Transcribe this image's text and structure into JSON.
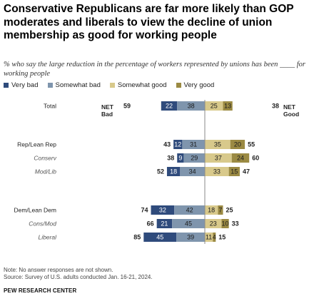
{
  "title": "Conservative Republicans are far more likely than GOP moderates and liberals to view the decline of union membership as good for working people",
  "subtitle_part1": "% who say the large reduction in the percentage of workers represented by unions has been",
  "subtitle_part2": "for working people",
  "note": "Note: No answer responses are not shown.",
  "source": "Source: Survey of U.S. adults conducted Jan. 16-21, 2024.",
  "org": "PEW RESEARCH CENTER",
  "chart_data": {
    "type": "bar",
    "stacked": "diverging",
    "series": [
      {
        "name": "Very bad",
        "color": "#2f4b7c"
      },
      {
        "name": "Somewhat bad",
        "color": "#7f95ad"
      },
      {
        "name": "Somewhat good",
        "color": "#d8c98b"
      },
      {
        "name": "Very good",
        "color": "#9b8a43"
      }
    ],
    "net_headers": {
      "bad": [
        "NET",
        "Bad"
      ],
      "good": [
        "NET",
        "Good"
      ]
    },
    "rows": [
      {
        "label": "Total",
        "style": "normal",
        "net_bad": "59",
        "very_bad": 22,
        "somewhat_bad": 38,
        "somewhat_good": 25,
        "very_good": 13,
        "net_good": "38"
      },
      {
        "label": "Rep/Lean Rep",
        "style": "normal",
        "net_bad": "43",
        "very_bad": 12,
        "somewhat_bad": 31,
        "somewhat_good": 35,
        "very_good": 20,
        "net_good": "55"
      },
      {
        "label": "Conserv",
        "style": "italic",
        "net_bad": "38",
        "very_bad": 9,
        "somewhat_bad": 29,
        "somewhat_good": 37,
        "very_good": 24,
        "net_good": "60"
      },
      {
        "label": "Mod/Lib",
        "style": "italic",
        "net_bad": "52",
        "very_bad": 18,
        "somewhat_bad": 34,
        "somewhat_good": 33,
        "very_good": 15,
        "net_good": "47"
      },
      {
        "label": "Dem/Lean Dem",
        "style": "normal",
        "net_bad": "74",
        "very_bad": 32,
        "somewhat_bad": 42,
        "somewhat_good": 18,
        "very_good": 7,
        "net_good": "25"
      },
      {
        "label": "Cons/Mod",
        "style": "italic",
        "net_bad": "66",
        "very_bad": 21,
        "somewhat_bad": 45,
        "somewhat_good": 23,
        "very_good": 10,
        "net_good": "33"
      },
      {
        "label": "Liberal",
        "style": "italic",
        "net_bad": "85",
        "very_bad": 45,
        "somewhat_bad": 39,
        "somewhat_good": 11,
        "very_good": 4,
        "net_good": "15"
      }
    ]
  }
}
